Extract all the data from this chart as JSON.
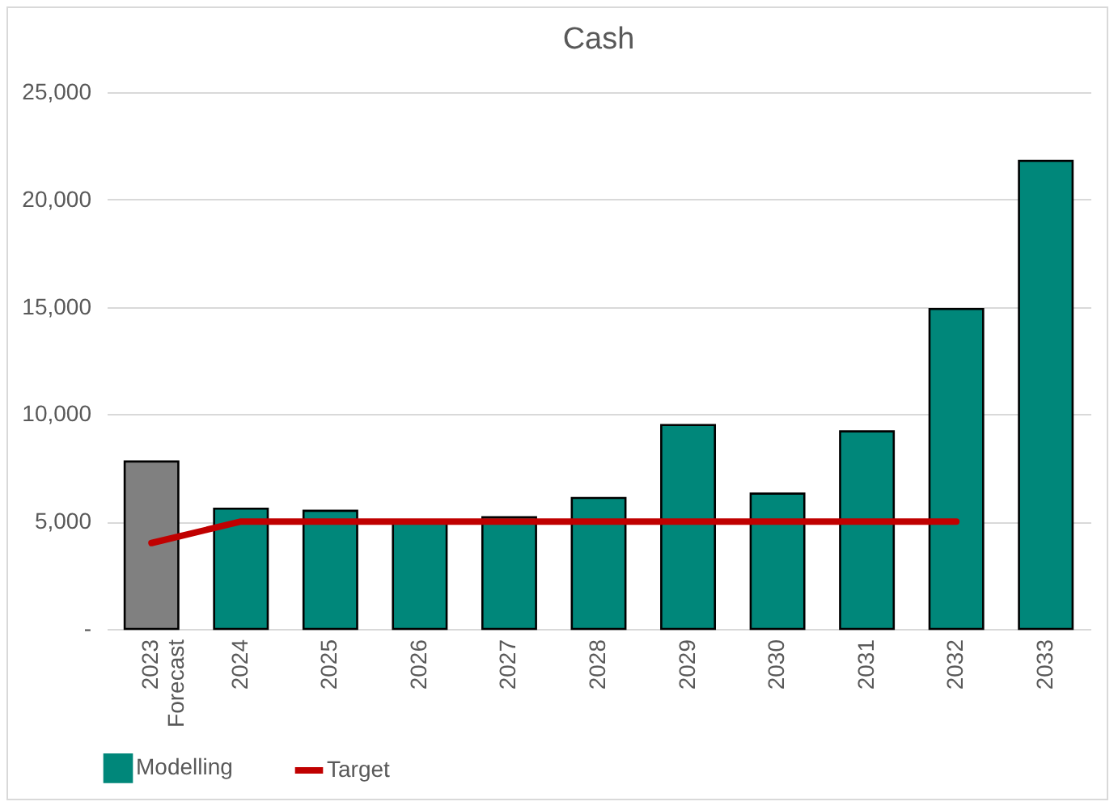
{
  "chart_data": {
    "type": "bar",
    "title": "Cash",
    "categories": [
      "2023\nForecast",
      "2024",
      "2025",
      "2026",
      "2027",
      "2028",
      "2029",
      "2030",
      "2031",
      "2032",
      "2033"
    ],
    "series": [
      {
        "name": "Modelling",
        "color": "#00877a",
        "colors": [
          "#808080",
          "#00877a",
          "#00877a",
          "#00877a",
          "#00877a",
          "#00877a",
          "#00877a",
          "#00877a",
          "#00877a",
          "#00877a",
          "#00877a"
        ],
        "values": [
          7800,
          5600,
          5500,
          5000,
          5200,
          6100,
          9500,
          6300,
          9200,
          14900,
          21800
        ]
      },
      {
        "name": "Target",
        "type": "line",
        "color": "#c00000",
        "values": [
          4000,
          5000,
          5000,
          5000,
          5000,
          5000,
          5000,
          5000,
          5000,
          5000,
          null
        ]
      }
    ],
    "ylim": [
      0,
      25000
    ],
    "yticks": [
      {
        "value": 0,
        "label": "-"
      },
      {
        "value": 5000,
        "label": "5,000"
      },
      {
        "value": 10000,
        "label": "10,000"
      },
      {
        "value": 15000,
        "label": "15,000"
      },
      {
        "value": 20000,
        "label": "20,000"
      },
      {
        "value": 25000,
        "label": "25,000"
      }
    ],
    "grid": "y",
    "legend": "bottom"
  }
}
